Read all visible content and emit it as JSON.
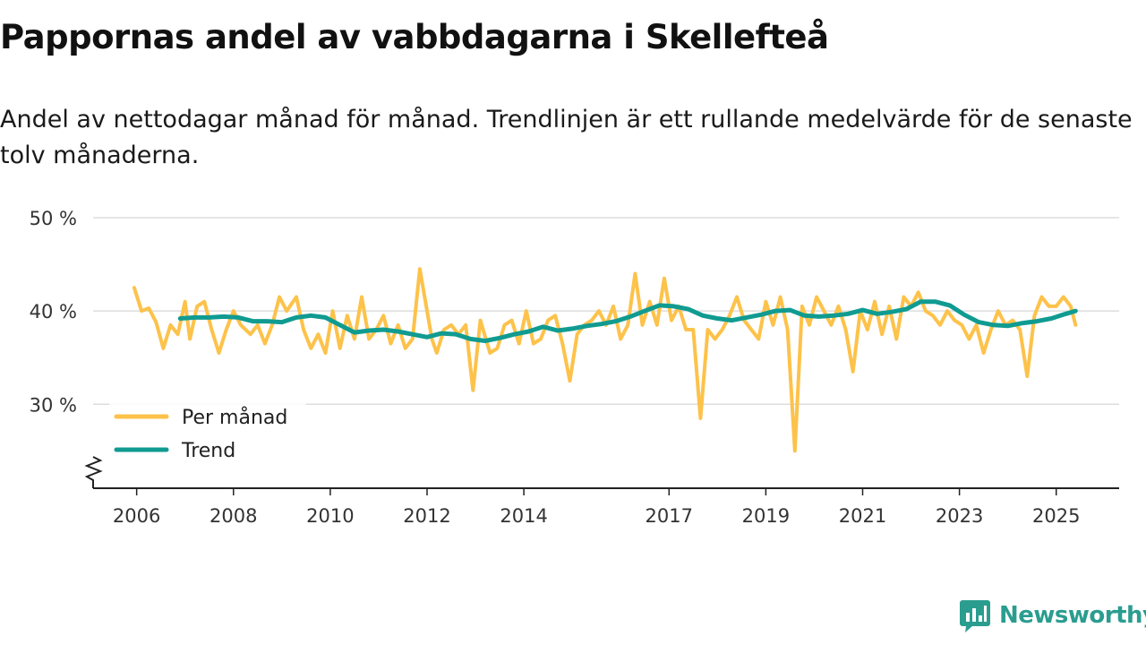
{
  "title": "Pappornas andel av vabbdagarna i Skellefteå",
  "subtitle": "Andel av nettodagar månad för månad. Trendlinjen är ett rullande medelvärde för de senaste tolv månaderna.",
  "brand": "Newsworthy",
  "colors": {
    "monthly": "#fdc24a",
    "trend": "#109b91",
    "grid": "#dddddd",
    "axis": "#222222",
    "brand": "#2a9d8f"
  },
  "chart_data": {
    "type": "line",
    "title": "Pappornas andel av vabbdagarna i Skellefteå",
    "xlabel": "",
    "ylabel": "",
    "ylim": [
      21,
      50
    ],
    "y_ticks": [
      30,
      40,
      50
    ],
    "y_tick_labels": [
      "30 %",
      "40 %",
      "50 %"
    ],
    "x_range": [
      2005.1,
      2026.3
    ],
    "x_ticks": [
      2006,
      2008,
      2010,
      2012,
      2014,
      2017,
      2019,
      2021,
      2023,
      2025
    ],
    "x_tick_labels": [
      "2006",
      "2008",
      "2010",
      "2012",
      "2014",
      "2017",
      "2019",
      "2021",
      "2023",
      "2025"
    ],
    "axis_break": true,
    "grid": true,
    "legend": {
      "position": "bottom-left",
      "entries": [
        "Per månad",
        "Trend"
      ]
    },
    "series": [
      {
        "name": "Per månad",
        "x": [
          2005.95,
          2006.1,
          2006.25,
          2006.4,
          2006.55,
          2006.7,
          2006.85,
          2007.0,
          2007.1,
          2007.25,
          2007.4,
          2007.55,
          2007.7,
          2007.85,
          2008.0,
          2008.15,
          2008.35,
          2008.5,
          2008.65,
          2008.8,
          2008.95,
          2009.1,
          2009.3,
          2009.45,
          2009.6,
          2009.75,
          2009.9,
          2010.05,
          2010.2,
          2010.35,
          2010.5,
          2010.65,
          2010.8,
          2010.95,
          2011.1,
          2011.25,
          2011.4,
          2011.55,
          2011.7,
          2011.85,
          2012.0,
          2012.1,
          2012.2,
          2012.35,
          2012.5,
          2012.65,
          2012.8,
          2012.95,
          2013.1,
          2013.3,
          2013.45,
          2013.6,
          2013.75,
          2013.9,
          2014.05,
          2014.2,
          2014.35,
          2014.5,
          2014.65,
          2014.8,
          2014.95,
          2015.1,
          2015.25,
          2015.4,
          2015.55,
          2015.7,
          2015.85,
          2016.0,
          2016.15,
          2016.3,
          2016.45,
          2016.6,
          2016.75,
          2016.9,
          2017.05,
          2017.2,
          2017.35,
          2017.5,
          2017.65,
          2017.8,
          2017.95,
          2018.1,
          2018.25,
          2018.4,
          2018.55,
          2018.7,
          2018.85,
          2019.0,
          2019.15,
          2019.3,
          2019.45,
          2019.6,
          2019.75,
          2019.9,
          2020.05,
          2020.2,
          2020.35,
          2020.5,
          2020.65,
          2020.8,
          2020.95,
          2021.1,
          2021.25,
          2021.4,
          2021.55,
          2021.7,
          2021.85,
          2022.0,
          2022.15,
          2022.3,
          2022.45,
          2022.6,
          2022.75,
          2022.9,
          2023.05,
          2023.2,
          2023.35,
          2023.5,
          2023.65,
          2023.8,
          2023.95,
          2024.1,
          2024.25,
          2024.4,
          2024.55,
          2024.7,
          2024.85,
          2025.0,
          2025.15,
          2025.3,
          2025.4
        ],
        "values": [
          42.5,
          40.0,
          40.3,
          38.8,
          36.0,
          38.5,
          37.5,
          41.0,
          37.0,
          40.5,
          41.0,
          38.0,
          35.5,
          38.0,
          40.0,
          38.5,
          37.5,
          38.5,
          36.5,
          38.5,
          41.5,
          40.0,
          41.5,
          38.0,
          36.0,
          37.5,
          35.5,
          40.0,
          36.0,
          39.5,
          37.0,
          41.5,
          37.0,
          38.0,
          39.5,
          36.5,
          38.5,
          36.0,
          37.0,
          44.5,
          40.0,
          37.0,
          35.5,
          38.0,
          38.5,
          37.5,
          38.5,
          31.5,
          39.0,
          35.5,
          36.0,
          38.5,
          39.0,
          36.5,
          40.0,
          36.5,
          37.0,
          39.0,
          39.5,
          36.5,
          32.5,
          37.5,
          38.5,
          39.0,
          40.0,
          38.5,
          40.5,
          37.0,
          38.5,
          44.0,
          38.5,
          41.0,
          38.5,
          43.5,
          39.0,
          40.5,
          38.0,
          38.0,
          28.5,
          38.0,
          37.0,
          38.0,
          39.5,
          41.5,
          39.0,
          38.0,
          37.0,
          41.0,
          38.5,
          41.5,
          38.0,
          25.0,
          40.5,
          38.5,
          41.5,
          40.0,
          38.5,
          40.5,
          38.0,
          33.5,
          40.0,
          38.0,
          41.0,
          37.5,
          40.5,
          37.0,
          41.5,
          40.5,
          42.0,
          40.0,
          39.5,
          38.5,
          40.0,
          39.0,
          38.5,
          37.0,
          38.5,
          35.5,
          38.0,
          40.0,
          38.5,
          39.0,
          38.0,
          33.0,
          39.5,
          41.5,
          40.5,
          40.5,
          41.5,
          40.5,
          38.5
        ]
      },
      {
        "name": "Trend",
        "x": [
          2006.9,
          2007.2,
          2007.5,
          2007.8,
          2008.1,
          2008.4,
          2008.7,
          2009.0,
          2009.3,
          2009.6,
          2009.9,
          2010.2,
          2010.5,
          2010.8,
          2011.1,
          2011.4,
          2011.7,
          2012.0,
          2012.3,
          2012.6,
          2012.9,
          2013.2,
          2013.5,
          2013.8,
          2014.1,
          2014.4,
          2014.7,
          2015.0,
          2015.3,
          2015.6,
          2015.9,
          2016.2,
          2016.5,
          2016.8,
          2017.1,
          2017.4,
          2017.7,
          2018.0,
          2018.3,
          2018.6,
          2018.9,
          2019.2,
          2019.5,
          2019.8,
          2020.1,
          2020.4,
          2020.7,
          2021.0,
          2021.3,
          2021.6,
          2021.9,
          2022.2,
          2022.5,
          2022.8,
          2023.1,
          2023.4,
          2023.7,
          2024.0,
          2024.3,
          2024.6,
          2024.9,
          2025.2,
          2025.4
        ],
        "values": [
          39.2,
          39.3,
          39.3,
          39.4,
          39.3,
          38.9,
          38.9,
          38.8,
          39.3,
          39.5,
          39.3,
          38.5,
          37.7,
          37.9,
          38.0,
          37.8,
          37.5,
          37.2,
          37.6,
          37.5,
          37.0,
          36.8,
          37.1,
          37.5,
          37.8,
          38.3,
          37.9,
          38.1,
          38.4,
          38.6,
          38.9,
          39.4,
          40.0,
          40.6,
          40.5,
          40.2,
          39.5,
          39.2,
          39.0,
          39.3,
          39.6,
          40.0,
          40.1,
          39.5,
          39.4,
          39.5,
          39.7,
          40.1,
          39.7,
          39.9,
          40.2,
          41.0,
          41.0,
          40.6,
          39.6,
          38.8,
          38.5,
          38.4,
          38.7,
          38.9,
          39.2,
          39.7,
          40.0
        ]
      }
    ]
  }
}
